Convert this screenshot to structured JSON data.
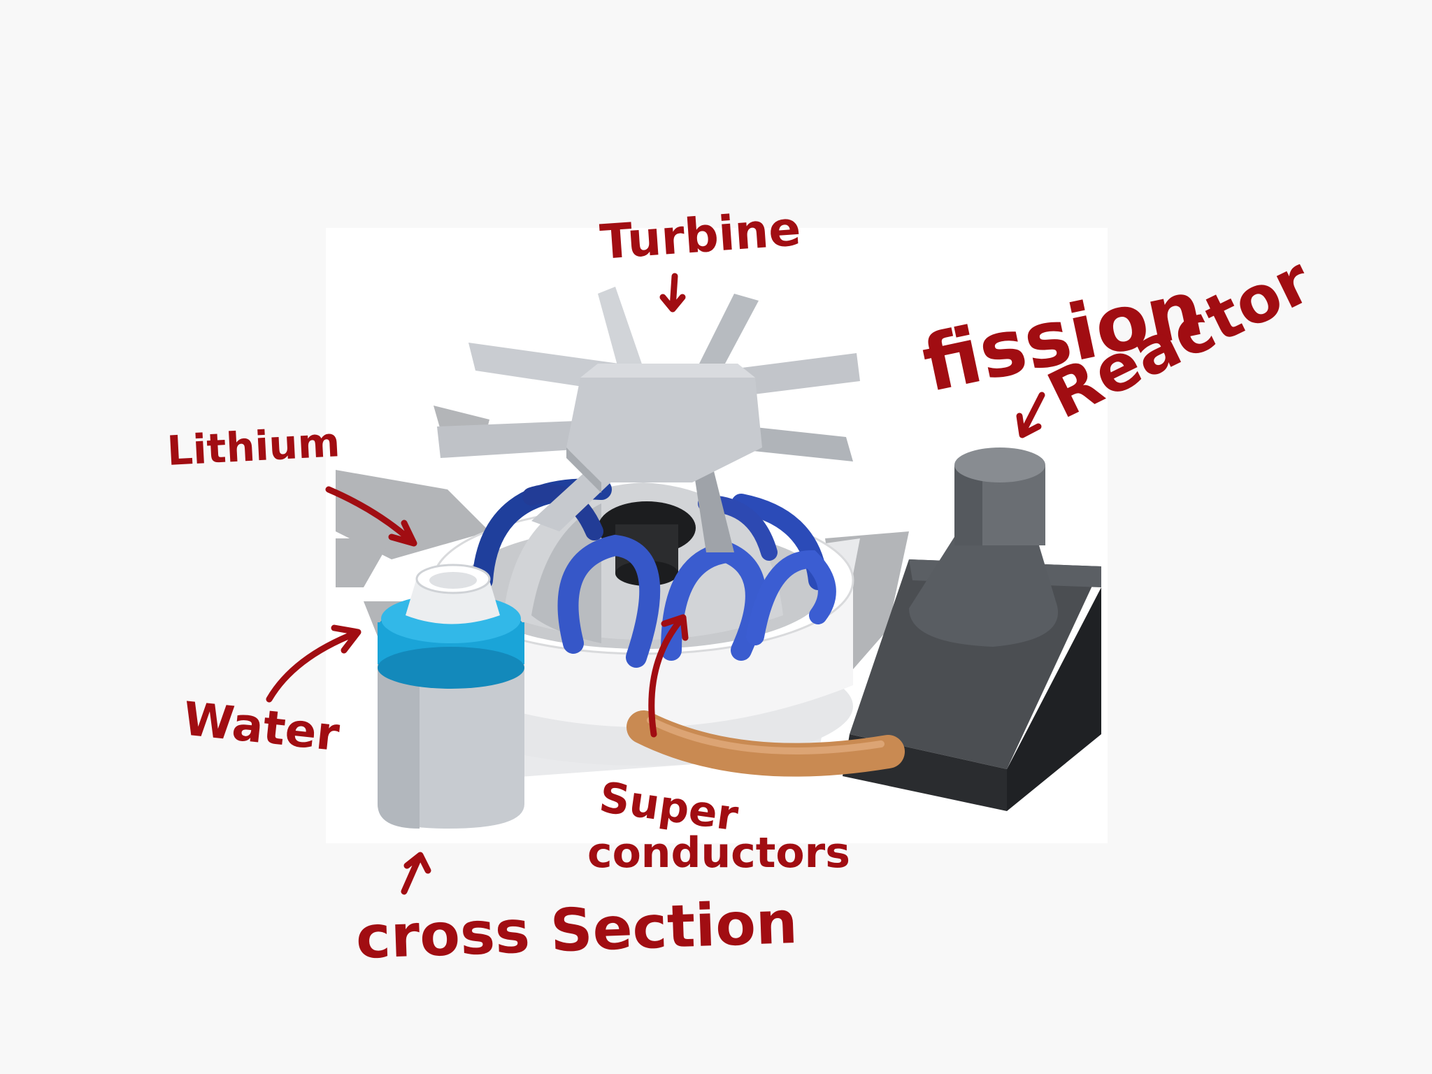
{
  "labels": {
    "turbine": "Turbine",
    "fission": "fission",
    "reactor": "Reactor",
    "lithium": "Lithium",
    "water": "Water",
    "super": "Super",
    "conductors": "conductors",
    "cross_section": "cross  Section"
  },
  "colors": {
    "annotation": "#a10d12",
    "turbine_gray": "#c4c8ce",
    "coil_blue": "#3a56c2",
    "water_cyan": "#1aa4d8",
    "reactor_black": "#2a2d30",
    "cable_tan": "#c98a52"
  }
}
